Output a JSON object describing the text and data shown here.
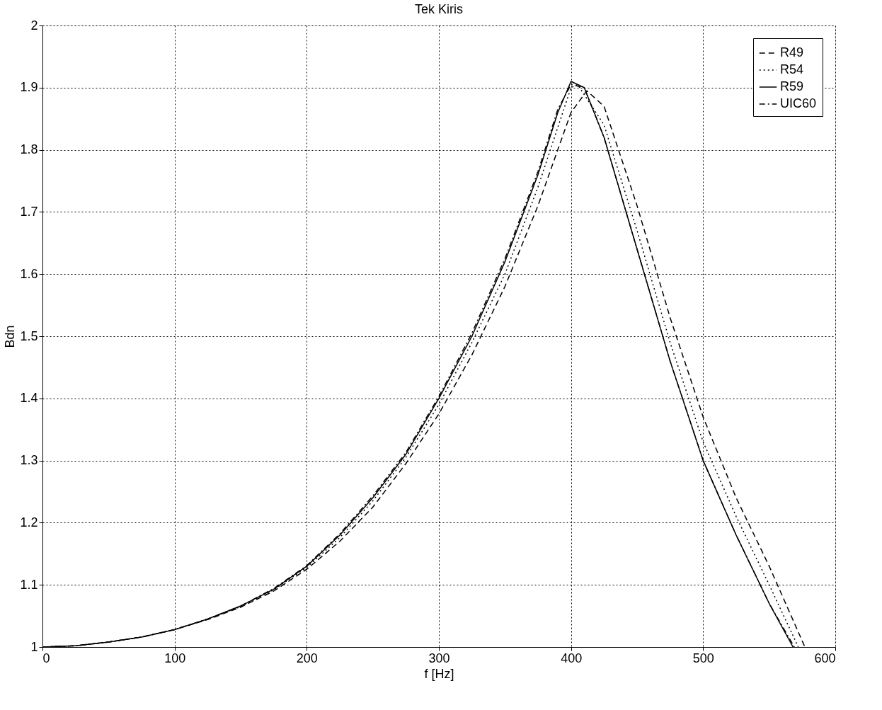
{
  "chart_data": {
    "type": "line",
    "title": "Tek Kiris",
    "xlabel": "f [Hz]",
    "ylabel": "Bdn",
    "xlim": [
      0,
      600
    ],
    "xticks": [
      0,
      100,
      200,
      300,
      400,
      500,
      600
    ],
    "ylim": [
      1,
      2
    ],
    "yticks": [
      1,
      1.1,
      1.2,
      1.3,
      1.4,
      1.5,
      1.6,
      1.7,
      1.8,
      1.9,
      2
    ],
    "grid": true,
    "legend": "top right",
    "marker": "none",
    "series": [
      {
        "name": "R49",
        "color": "#000000",
        "line_style": "dashed",
        "x": [
          0,
          25,
          50,
          75,
          100,
          125,
          150,
          175,
          200,
          225,
          250,
          275,
          300,
          325,
          350,
          375,
          400,
          412,
          425,
          450,
          475,
          500,
          525,
          550,
          577
        ],
        "values": [
          1.0,
          1.002,
          1.008,
          1.016,
          1.028,
          1.044,
          1.064,
          1.09,
          1.125,
          1.17,
          1.225,
          1.295,
          1.375,
          1.47,
          1.58,
          1.71,
          1.86,
          1.895,
          1.87,
          1.71,
          1.53,
          1.37,
          1.24,
          1.13,
          1.0
        ]
      },
      {
        "name": "R54",
        "color": "#000000",
        "line_style": "dotted",
        "x": [
          0,
          25,
          50,
          75,
          100,
          125,
          150,
          175,
          200,
          225,
          250,
          275,
          300,
          325,
          350,
          375,
          400,
          405,
          425,
          450,
          475,
          500,
          525,
          550,
          572
        ],
        "values": [
          1.0,
          1.002,
          1.008,
          1.016,
          1.028,
          1.045,
          1.065,
          1.092,
          1.128,
          1.176,
          1.235,
          1.305,
          1.39,
          1.49,
          1.6,
          1.74,
          1.9,
          1.905,
          1.84,
          1.67,
          1.49,
          1.33,
          1.21,
          1.1,
          1.0
        ]
      },
      {
        "name": "R59",
        "color": "#000000",
        "line_style": "solid",
        "x": [
          0,
          25,
          50,
          75,
          100,
          125,
          150,
          175,
          200,
          225,
          250,
          275,
          300,
          325,
          350,
          375,
          390,
          400,
          410,
          425,
          450,
          475,
          500,
          525,
          550,
          568
        ],
        "values": [
          1.0,
          1.002,
          1.008,
          1.016,
          1.028,
          1.045,
          1.066,
          1.093,
          1.13,
          1.18,
          1.24,
          1.31,
          1.4,
          1.5,
          1.62,
          1.76,
          1.86,
          1.91,
          1.9,
          1.82,
          1.64,
          1.46,
          1.3,
          1.18,
          1.07,
          1.0
        ]
      },
      {
        "name": "UIC60",
        "color": "#000000",
        "line_style": "dashdot",
        "x": [
          0,
          25,
          50,
          75,
          100,
          125,
          150,
          175,
          200,
          225,
          250,
          275,
          300,
          325,
          350,
          375,
          390,
          400,
          410,
          425,
          450,
          475,
          500,
          525,
          550,
          569
        ],
        "values": [
          1.0,
          1.002,
          1.008,
          1.016,
          1.028,
          1.045,
          1.066,
          1.094,
          1.131,
          1.182,
          1.243,
          1.313,
          1.403,
          1.505,
          1.625,
          1.765,
          1.865,
          1.905,
          1.9,
          1.82,
          1.64,
          1.46,
          1.3,
          1.18,
          1.07,
          1.0
        ]
      }
    ]
  }
}
